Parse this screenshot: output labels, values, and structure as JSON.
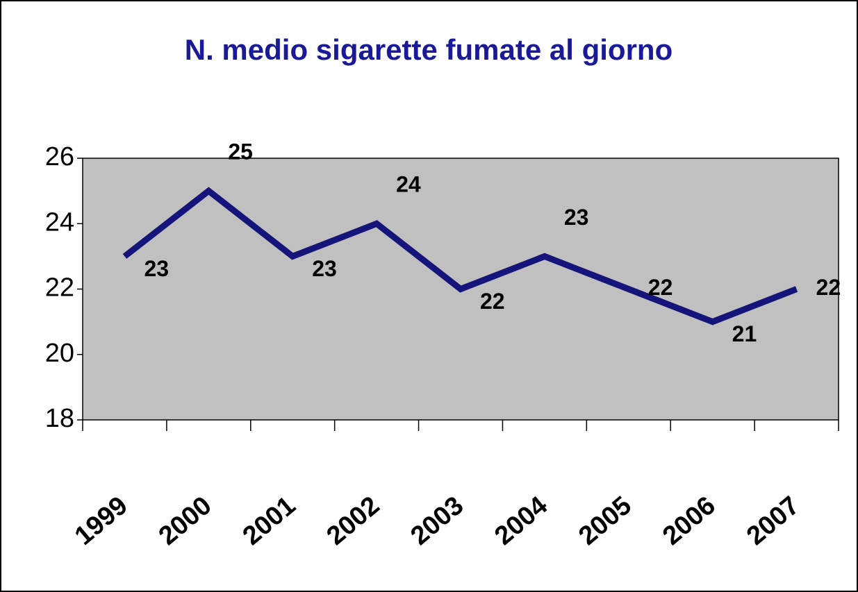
{
  "chart_data": {
    "type": "line",
    "title": "N. medio sigarette fumate al giorno",
    "categories": [
      "1999",
      "2000",
      "2001",
      "2002",
      "2003",
      "2004",
      "2005",
      "2006",
      "2007"
    ],
    "values": [
      23,
      25,
      23,
      24,
      22,
      23,
      22,
      21,
      22
    ],
    "color": "#14147a",
    "plot_background": "#c0c0c0",
    "ylim": [
      18,
      26
    ],
    "yticks": [
      18,
      20,
      22,
      24,
      26
    ],
    "grid": false
  }
}
